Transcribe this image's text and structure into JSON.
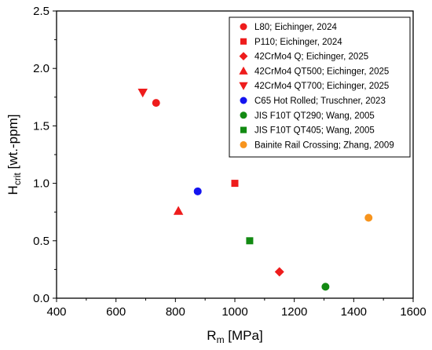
{
  "chart_data": {
    "type": "scatter",
    "xlabel": "R",
    "xlabel_sub": "m",
    "xlabel_unit": " [MPa]",
    "ylabel": "H",
    "ylabel_sub": "crit",
    "ylabel_unit": " [wt.-ppm]",
    "xlim": [
      400,
      1600
    ],
    "ylim": [
      0,
      2.5
    ],
    "x_ticks": [
      400,
      600,
      800,
      1000,
      1200,
      1400,
      1600
    ],
    "y_ticks": [
      "0.0",
      "0.5",
      "1.0",
      "1.5",
      "2.0",
      "2.5"
    ],
    "grid": false,
    "legend_position": "top-right",
    "series": [
      {
        "name": "L80; Eichinger, 2024",
        "marker": "circle",
        "color": "#ee1c1c",
        "x": [
          735
        ],
        "y": [
          1.7
        ]
      },
      {
        "name": "P110; Eichinger, 2024",
        "marker": "square",
        "color": "#ee1c1c",
        "x": [
          1000
        ],
        "y": [
          1.0
        ]
      },
      {
        "name": "42CrMo4 Q; Eichinger, 2025",
        "marker": "diamond",
        "color": "#ee1c1c",
        "x": [
          1150
        ],
        "y": [
          0.23
        ]
      },
      {
        "name": "42CrMo4 QT500; Eichinger, 2025",
        "marker": "triangle-up",
        "color": "#ee1c1c",
        "x": [
          810
        ],
        "y": [
          0.76
        ]
      },
      {
        "name": "42CrMo4 QT700; Eichinger, 2025",
        "marker": "triangle-down",
        "color": "#ee1c1c",
        "x": [
          690
        ],
        "y": [
          1.79
        ]
      },
      {
        "name": "C65 Hot Rolled; Truschner, 2023",
        "marker": "circle",
        "color": "#1414f0",
        "x": [
          875
        ],
        "y": [
          0.93
        ]
      },
      {
        "name": "JIS F10T QT290; Wang, 2005",
        "marker": "circle",
        "color": "#128a12",
        "x": [
          1305
        ],
        "y": [
          0.1
        ]
      },
      {
        "name": "JIS F10T QT405; Wang, 2005",
        "marker": "square",
        "color": "#128a12",
        "x": [
          1050
        ],
        "y": [
          0.5
        ]
      },
      {
        "name": "Bainite Rail Crossing; Zhang, 2009",
        "marker": "circle",
        "color": "#f7941d",
        "x": [
          1450
        ],
        "y": [
          0.7
        ]
      }
    ]
  }
}
